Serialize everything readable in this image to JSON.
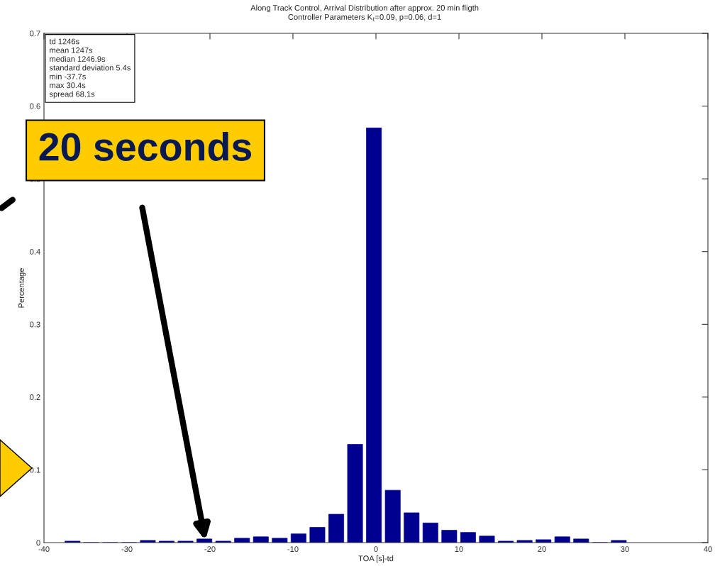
{
  "chart_data": {
    "type": "histogram",
    "title": "Along Track Control, Arrival Distribution after approx. 20 min fligth",
    "subtitle": "Controller Parameters K$_{t}$=0.09, p=0.06, d=1",
    "xlabel": "TOA [s]-td",
    "ylabel": "Percentage",
    "bins": [
      -37.7,
      -35.43,
      -33.16,
      -30.89,
      -28.62,
      -26.35,
      -24.08,
      -21.81,
      -19.54,
      -17.27,
      -15.0,
      -12.73,
      -10.46,
      -8.19,
      -5.92,
      -3.65,
      -1.38,
      0.89,
      3.16,
      5.43,
      7.7,
      9.97,
      12.24,
      14.51,
      16.78,
      19.05,
      21.32,
      23.59,
      25.86,
      28.13,
      30.4
    ],
    "values": [
      0.002,
      0,
      0,
      0,
      0.003,
      0.002,
      0.002,
      0.005,
      0.002,
      0.006,
      0.008,
      0.006,
      0.012,
      0.021,
      0.039,
      0.135,
      0.57,
      0.072,
      0.041,
      0.027,
      0.017,
      0.014,
      0.009,
      0.002,
      0.003,
      0.004,
      0.008,
      0.005,
      0,
      0.003
    ],
    "color": "#000090",
    "xlim": [
      -40,
      40
    ],
    "xticks": [
      -40,
      -30,
      -20,
      -10,
      0,
      10,
      20,
      30,
      40
    ],
    "ylim": [
      0,
      0.7
    ],
    "yticks": [
      0,
      0.1,
      0.2,
      0.3,
      0.4,
      0.5,
      0.6,
      0.7
    ],
    "grid": false,
    "annotations": [
      "td 1246s",
      "mean 1247s",
      "median 1246.9s",
      "standard deviation 5.4s",
      "min -37.7s",
      "max 30.4s",
      "spread 68.1s",
      "20 seconds"
    ]
  }
}
